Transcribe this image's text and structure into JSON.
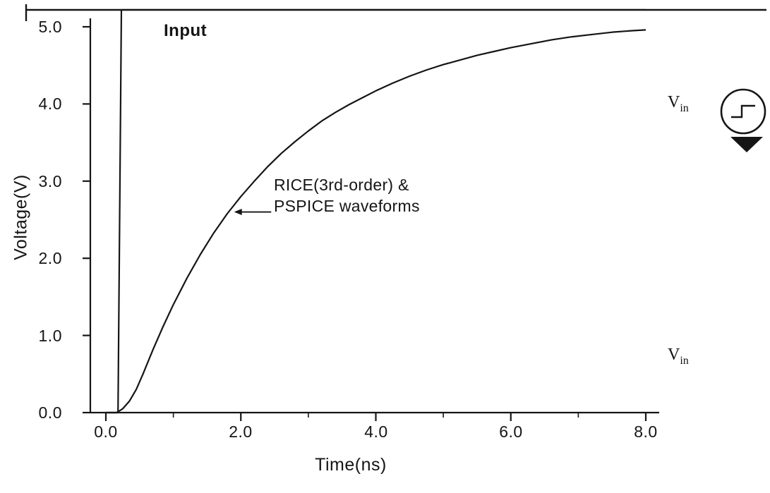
{
  "figure": {
    "ylabel": "Voltage(V)",
    "xlabel": "Time(ns)",
    "input_label": "Input",
    "annotation_line1": "RICE(3rd-order) &",
    "annotation_line2": "PSPICE waveforms"
  },
  "schematic": {
    "source_label": {
      "base": "V",
      "sub": "in"
    },
    "node_label": {
      "base": "V",
      "sub": "in"
    }
  },
  "chart_data": {
    "type": "line",
    "title": "",
    "xlabel": "Time(ns)",
    "ylabel": "Voltage(V)",
    "xlim": [
      0,
      8
    ],
    "ylim": [
      0,
      5
    ],
    "grid": false,
    "x_tick_labels": [
      "0.0",
      "2.0",
      "4.0",
      "6.0",
      "8.0"
    ],
    "x_major_ticks": [
      0,
      2,
      4,
      6,
      8
    ],
    "x_minor_ticks": [
      1,
      3,
      5,
      7
    ],
    "y_tick_labels": [
      "0.0",
      "1.0",
      "2.0",
      "3.0",
      "4.0",
      "5.0"
    ],
    "y_major_ticks": [
      0,
      1,
      2,
      3,
      4,
      5
    ],
    "series": [
      {
        "name": "Input",
        "points": [
          [
            0,
            0
          ],
          [
            0.18,
            0
          ],
          [
            0.23,
            5.22
          ],
          [
            8.0,
            5.22
          ]
        ]
      },
      {
        "name": "RICE(3rd-order) & PSPICE waveforms",
        "points": [
          [
            0,
            0
          ],
          [
            0.16,
            0
          ],
          [
            0.25,
            0.05
          ],
          [
            0.35,
            0.15
          ],
          [
            0.45,
            0.3
          ],
          [
            0.55,
            0.5
          ],
          [
            0.7,
            0.82
          ],
          [
            0.85,
            1.12
          ],
          [
            1.0,
            1.4
          ],
          [
            1.2,
            1.74
          ],
          [
            1.4,
            2.05
          ],
          [
            1.6,
            2.33
          ],
          [
            1.8,
            2.58
          ],
          [
            2.0,
            2.8
          ],
          [
            2.2,
            3.0
          ],
          [
            2.4,
            3.19
          ],
          [
            2.6,
            3.36
          ],
          [
            2.8,
            3.51
          ],
          [
            3.0,
            3.65
          ],
          [
            3.2,
            3.78
          ],
          [
            3.4,
            3.89
          ],
          [
            3.6,
            3.99
          ],
          [
            3.8,
            4.08
          ],
          [
            4.0,
            4.17
          ],
          [
            4.25,
            4.27
          ],
          [
            4.5,
            4.36
          ],
          [
            4.75,
            4.44
          ],
          [
            5.0,
            4.51
          ],
          [
            5.25,
            4.57
          ],
          [
            5.5,
            4.63
          ],
          [
            5.75,
            4.68
          ],
          [
            6.0,
            4.73
          ],
          [
            6.3,
            4.78
          ],
          [
            6.6,
            4.83
          ],
          [
            6.9,
            4.87
          ],
          [
            7.2,
            4.9
          ],
          [
            7.5,
            4.93
          ],
          [
            7.8,
            4.95
          ],
          [
            8.0,
            4.96
          ]
        ]
      }
    ],
    "annotations": [
      {
        "text": "Input",
        "x": 0.95,
        "y": 4.92
      },
      {
        "text": "RICE(3rd-order) & PSPICE waveforms",
        "x": 2.55,
        "y": 2.75,
        "arrow_from": [
          2.45,
          2.6
        ],
        "arrow_to": [
          1.9,
          2.6
        ]
      }
    ]
  }
}
